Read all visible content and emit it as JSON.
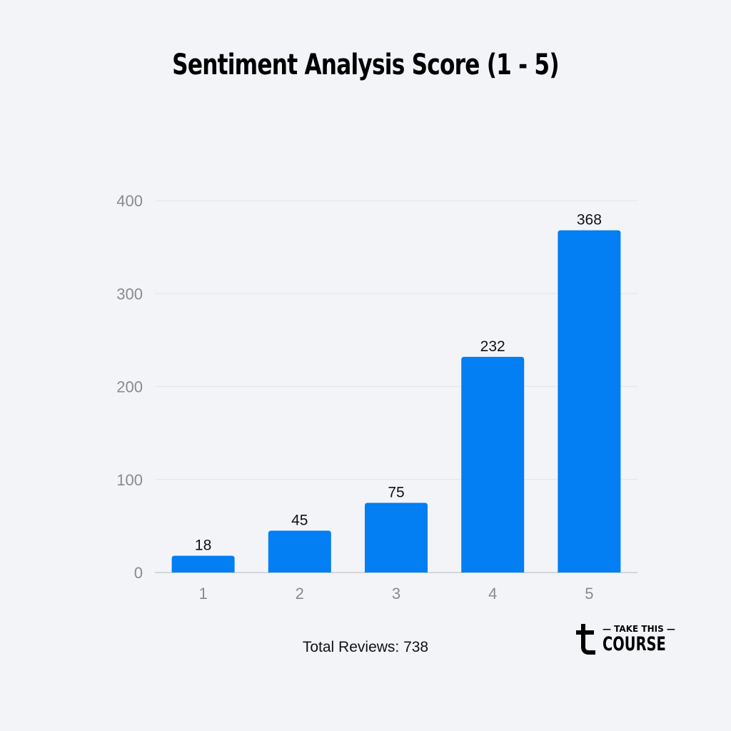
{
  "chart_data": {
    "type": "bar",
    "title": "Sentiment Analysis Score (1 - 5)",
    "categories": [
      "1",
      "2",
      "3",
      "4",
      "5"
    ],
    "values": [
      18,
      45,
      75,
      232,
      368
    ],
    "ylim": [
      0,
      400
    ],
    "yticks": [
      0,
      100,
      200,
      300,
      400
    ],
    "grid": true,
    "bar_color": "#037ef3",
    "note": "Total Reviews: 738"
  },
  "brand": {
    "line1": "— TAKE THIS —",
    "line2": "COURSE"
  }
}
